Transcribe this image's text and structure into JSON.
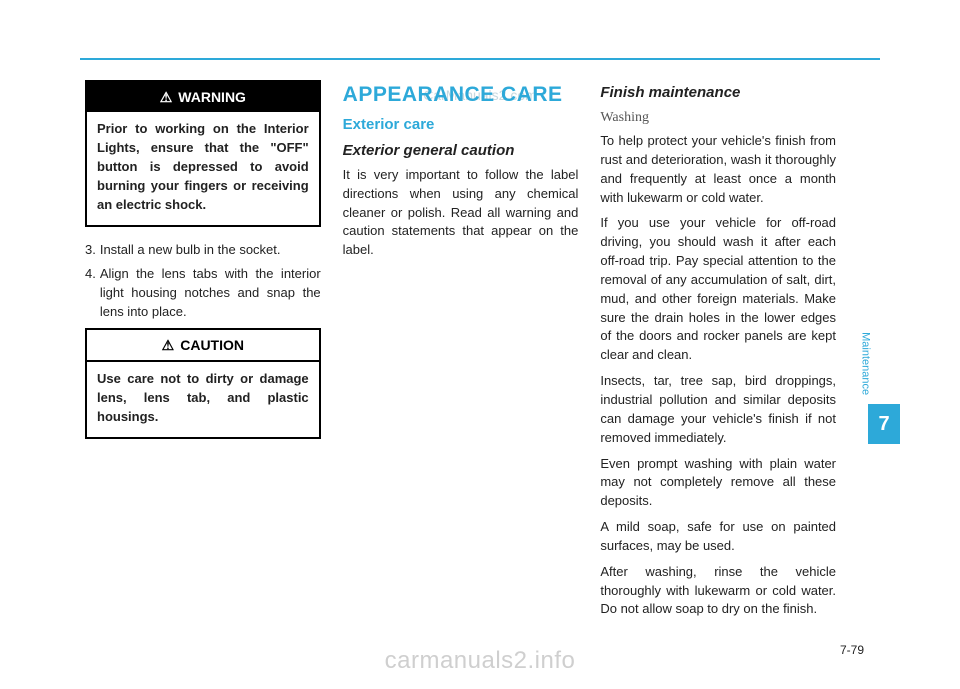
{
  "watermarks": {
    "top": "CarManuals2.com",
    "bottom": "carmanuals2.info"
  },
  "side": {
    "label": "Maintenance",
    "tab_number": "7",
    "tab_bg": "#2da9d9",
    "tab_fg": "#ffffff"
  },
  "page_number": "7-79",
  "col1": {
    "warning": {
      "icon": "⚠",
      "label": "WARNING",
      "body": "Prior to working on the Interior Lights, ensure that the \"OFF\" button is depressed to avoid burning your fingers or receiving an electric shock."
    },
    "steps": [
      {
        "n": "3.",
        "t": "Install a new bulb in the socket."
      },
      {
        "n": "4.",
        "t": "Align the lens tabs with the interior light housing notches and snap the lens into place."
      }
    ],
    "caution": {
      "icon": "⚠",
      "label": "CAUTION",
      "body": "Use care not to dirty or damage lens, lens tab, and plastic housings."
    }
  },
  "col2": {
    "section_title": "APPEARANCE CARE",
    "h_blue": "Exterior care",
    "h_ital": "Exterior general caution",
    "para": "It is very important to follow the label directions when using any chemical cleaner or polish. Read all warning and caution statements that appear on the label."
  },
  "col3": {
    "h_ital": "Finish maintenance",
    "h_serif": "Washing",
    "paras": [
      "To help protect your vehicle's finish from rust and deterioration, wash it thoroughly and frequently at least once a month with lukewarm or cold water.",
      "If you use your vehicle for off-road driving, you should wash it after each off-road trip. Pay special attention to the removal of any accumulation of salt, dirt, mud, and other foreign materials. Make sure the drain holes in the lower edges of the doors and rocker panels are kept clear and clean.",
      "Insects, tar, tree sap, bird droppings, industrial pollution and similar deposits can damage your vehicle's finish if not removed immediately.",
      "Even prompt washing with plain water may not completely remove all these deposits.",
      "A mild soap, safe for use on painted surfaces, may be used.",
      "After washing, rinse the vehicle thoroughly with lukewarm or cold water. Do not allow soap to dry on the finish."
    ]
  },
  "colors": {
    "accent": "#2da9d9",
    "text": "#222222",
    "rule": "#2da9d9"
  }
}
